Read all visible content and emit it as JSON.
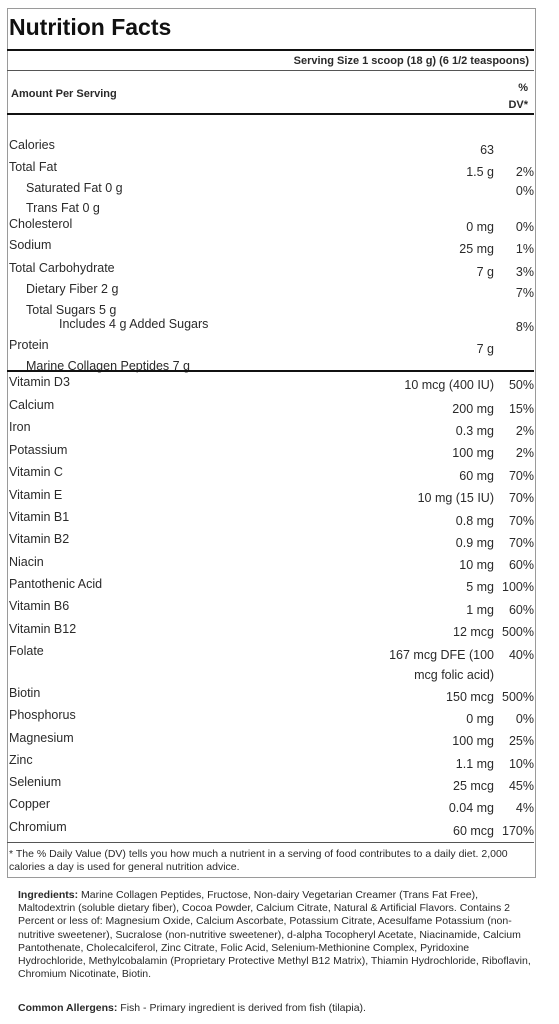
{
  "title": "Nutrition Facts",
  "serving_size": "Serving Size 1 scoop (18 g) (6 1/2 teaspoons)",
  "amount_per_serving": "Amount Per Serving",
  "dv_header_line1": "%",
  "dv_header_line2": "DV*",
  "rows": [
    {
      "name": "Calories",
      "amount": "63",
      "dv": ""
    },
    {
      "name": "Total Fat",
      "amount": "1.5 g",
      "dv": "2%"
    },
    {
      "name": "Saturated Fat   0 g",
      "amount": "",
      "dv": "0%"
    },
    {
      "name": "Trans Fat   0 g",
      "amount": "",
      "dv": ""
    },
    {
      "name": "Cholesterol",
      "amount": "0 mg",
      "dv": "0%"
    },
    {
      "name": "Sodium",
      "amount": "25 mg",
      "dv": "1%"
    },
    {
      "name": "Total Carbohydrate",
      "amount": "7 g",
      "dv": "3%"
    },
    {
      "name": "Dietary Fiber   2 g",
      "amount": "",
      "dv": "7%"
    },
    {
      "name": "Total Sugars 5 g",
      "sub": "Includes 4 g Added Sugars",
      "amount": "",
      "dv": "8%"
    },
    {
      "name": "Protein",
      "amount": "7 g",
      "dv": ""
    },
    {
      "name": "Marine Collagen Peptides   7 g",
      "amount": "",
      "dv": ""
    },
    {
      "name": "Vitamin D3",
      "amount": "10 mcg (400 IU)",
      "dv": "50%"
    },
    {
      "name": "Calcium",
      "amount": "200 mg",
      "dv": "15%"
    },
    {
      "name": "Iron",
      "amount": "0.3 mg",
      "dv": "2%"
    },
    {
      "name": "Potassium",
      "amount": "100 mg",
      "dv": "2%"
    },
    {
      "name": "Vitamin C",
      "amount": "60 mg",
      "dv": "70%"
    },
    {
      "name": "Vitamin E",
      "amount": "10 mg (15 IU)",
      "dv": "70%"
    },
    {
      "name": "Vitamin B1",
      "amount": "0.8 mg",
      "dv": "70%"
    },
    {
      "name": "Vitamin B2",
      "amount": "0.9 mg",
      "dv": "70%"
    },
    {
      "name": "Niacin",
      "amount": "10 mg",
      "dv": "60%"
    },
    {
      "name": "Pantothenic Acid",
      "amount": "5 mg",
      "dv": "100%"
    },
    {
      "name": "Vitamin B6",
      "amount": "1 mg",
      "dv": "60%"
    },
    {
      "name": "Vitamin B12",
      "amount": "12 mcg",
      "dv": "500%"
    },
    {
      "name": "Folate",
      "amount": "167 mcg DFE (100",
      "amount2": "mcg folic acid)",
      "dv": "40%"
    },
    {
      "name": "Biotin",
      "amount": "150 mcg",
      "dv": "500%"
    },
    {
      "name": "Phosphorus",
      "amount": "0 mg",
      "dv": "0%"
    },
    {
      "name": "Magnesium",
      "amount": "100 mg",
      "dv": "25%"
    },
    {
      "name": "Zinc",
      "amount": "1.1 mg",
      "dv": "10%"
    },
    {
      "name": "Selenium",
      "amount": "25 mcg",
      "dv": "45%"
    },
    {
      "name": "Copper",
      "amount": "0.04 mg",
      "dv": "4%"
    },
    {
      "name": "Chromium",
      "amount": "60 mcg",
      "dv": "170%"
    }
  ],
  "footnote": "* The % Daily Value (DV) tells you how much a nutrient in a serving of food contributes to a daily diet. 2,000 calories a day is used for general nutrition advice.",
  "ingredients_label": "Ingredients:",
  "ingredients_text": " Marine Collagen Peptides, Fructose, Non-dairy Vegetarian Creamer (Trans Fat Free), Maltodextrin (soluble dietary fiber), Cocoa Powder, Calcium Citrate, Natural & Artificial Flavors. Contains 2 Percent or less of: Magnesium Oxide, Calcium Ascorbate, Potassium Citrate, Acesulfame Potassium (non-nutritive sweetener), Sucralose (non-nutritive sweetener), d-alpha Tocopheryl Acetate, Niacinamide, Calcium Pantothenate, Cholecalciferol, Zinc Citrate, Folic Acid, Selenium-Methionine Complex, Pyridoxine Hydrochloride, Methylcobalamin (Proprietary Protective Methyl B12 Matrix), Thiamin Hydrochloride, Riboflavin, Chromium Nicotinate, Biotin.",
  "allergens_label": "Common Allergens:",
  "allergens_text": " Fish - Primary ingredient is derived from fish (tilapia)."
}
